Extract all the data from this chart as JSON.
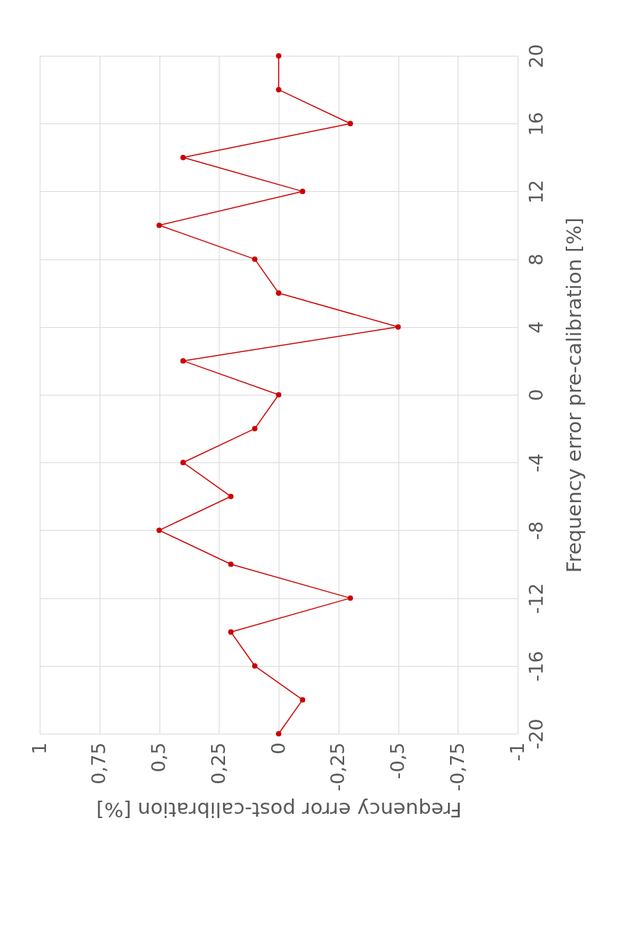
{
  "chart_data": {
    "type": "line",
    "orientation": "horizontal",
    "xlabel": "Frequency error post-calibration [%]",
    "ylabel": "Frequency error pre-calibration [%]",
    "x": [
      -20,
      -18,
      -16,
      -14,
      -12,
      -10,
      -8,
      -6,
      -4,
      -2,
      0,
      2,
      4,
      6,
      8,
      10,
      12,
      14,
      16,
      18,
      20
    ],
    "values": [
      0,
      -0.1,
      0.1,
      0.2,
      -0.3,
      0.2,
      0.5,
      0.2,
      0.4,
      0.1,
      0,
      0.4,
      -0.5,
      0,
      0.1,
      0.5,
      -0.1,
      0.4,
      -0.3,
      0,
      0
    ],
    "color": "#cc0000",
    "marker": "circle",
    "line_style": "solid",
    "grid": true,
    "xlim": [
      1,
      -1
    ],
    "xticks": [
      1,
      {
        "value": 0.75,
        "label": "0,75"
      },
      {
        "value": 0.5,
        "label": "0,5"
      },
      {
        "value": 0.25,
        "label": "0,25"
      },
      0,
      {
        "value": -0.25,
        "label": "-0,25"
      },
      {
        "value": -0.5,
        "label": "-0,5"
      },
      {
        "value": -0.75,
        "label": "-0,75"
      },
      -1
    ],
    "ylim": [
      -20,
      20
    ],
    "yticks": [
      -20,
      -16,
      -12,
      -8,
      -4,
      0,
      4,
      8,
      12,
      16,
      20
    ]
  }
}
